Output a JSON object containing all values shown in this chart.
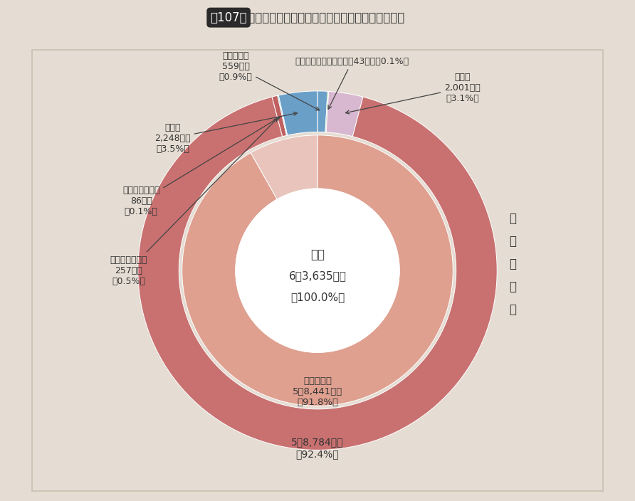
{
  "title_badge": "第107図",
  "title_rest": " 介護保険事業の歳出決算の状況（保険事業勘定）",
  "background_color": "#e5ddd3",
  "chart_bg": "#f4f0ea",
  "center_lines": [
    "歳出",
    "6兆3,635億円",
    "（100.0%）"
  ],
  "outer_segments": [
    {
      "pct": 0.9,
      "color": "#6a9fc8",
      "label": "基金積立金\n559億円\n（0.9%）"
    },
    {
      "pct": 0.1,
      "color": "#7bbf7a",
      "label": "財政安定化基金拠出金　43億円（0.1%）"
    },
    {
      "pct": 3.1,
      "color": "#d8b8d0",
      "label": "その他\n2,001億円\n（3.1%）"
    },
    {
      "pct": 92.4,
      "color": "#c97070",
      "label": "保険給付費"
    },
    {
      "pct": 0.5,
      "color": "#c06060",
      "label": "その他の給付費\n257億円\n（0.5%）"
    },
    {
      "pct": 0.1,
      "color": "#70c8c8",
      "label": "審査支払手数料\n86億円\n（0.1%）"
    },
    {
      "pct": 3.5,
      "color": "#6a9fc8",
      "label": "総務費\n2,248億円\n（3.5%）"
    }
  ],
  "inner_segments": [
    {
      "pct": 91.8,
      "color": "#dfa090",
      "label": "介護諸費等\n5兆8,441億円\n（91.8%）"
    },
    {
      "pct": 8.2,
      "color": "#e8c4bc",
      "label": ""
    }
  ],
  "outer_r": [
    2.2,
    2.85
  ],
  "inner_r": [
    1.3,
    2.15
  ],
  "center_r": 1.3,
  "hoken_label": "保\n険\n給\n付\n費",
  "outer_val_label": "5兆8,784億円\n（92.4%）",
  "inner_val_label": "介護諸費等\n5兆8,441億円\n（91.8%）"
}
